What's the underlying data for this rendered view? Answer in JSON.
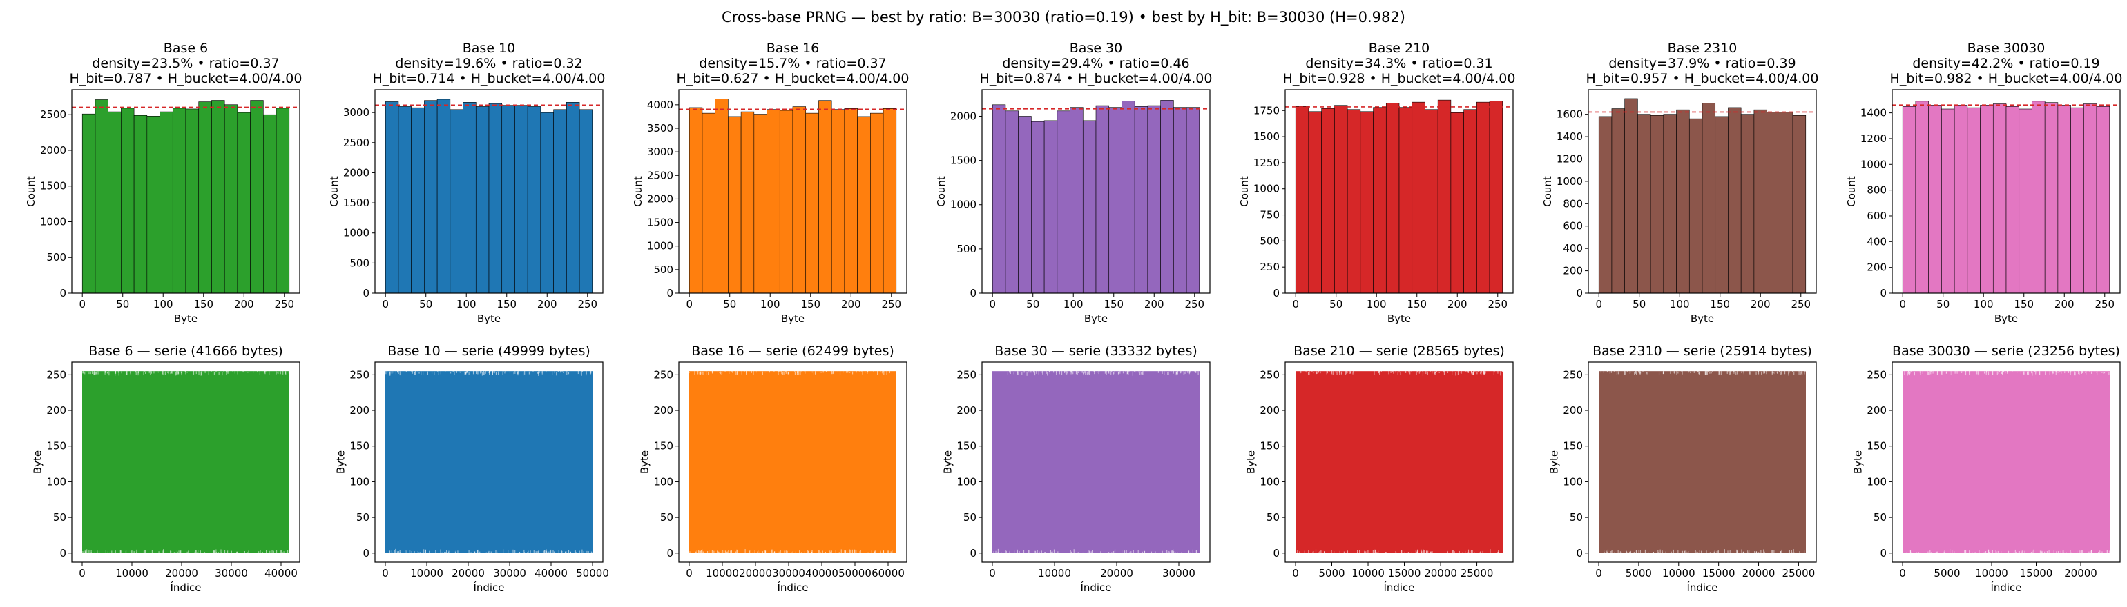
{
  "figure": {
    "suptitle": "Cross-base PRNG — best by ratio: B=30030 (ratio=0.19) • best by H_bit: B=30030 (H=0.982)"
  },
  "chart_data": [
    {
      "type": "bar",
      "title": "Base 6\ndensity=23.5% • ratio=0.37\nH_bit=0.787 • H_bucket=4.00/4.00",
      "xlabel": "Byte",
      "ylabel": "Count",
      "color": "#2ca02c",
      "bin_edges": [
        0,
        16,
        32,
        48,
        64,
        80,
        96,
        112,
        128,
        144,
        160,
        176,
        192,
        208,
        224,
        240,
        256
      ],
      "values": [
        2510,
        2710,
        2540,
        2590,
        2490,
        2480,
        2540,
        2590,
        2580,
        2680,
        2700,
        2640,
        2530,
        2700,
        2500,
        2590
      ],
      "mean_line": 2604,
      "xlim": [
        -13,
        269
      ],
      "ylim": [
        0,
        2850
      ],
      "xticks": [
        0,
        50,
        100,
        150,
        200,
        250
      ],
      "yticks": [
        0,
        500,
        1000,
        1500,
        2000,
        2500
      ]
    },
    {
      "type": "bar",
      "title": "Base 10\ndensity=19.6% • ratio=0.32\nH_bit=0.714 • H_bucket=4.00/4.00",
      "xlabel": "Byte",
      "ylabel": "Count",
      "color": "#1f77b4",
      "bin_edges": [
        0,
        16,
        32,
        48,
        64,
        80,
        96,
        112,
        128,
        144,
        160,
        176,
        192,
        208,
        224,
        240,
        256
      ],
      "values": [
        3180,
        3100,
        3080,
        3200,
        3220,
        3050,
        3170,
        3100,
        3150,
        3120,
        3120,
        3100,
        3000,
        3050,
        3170,
        3050
      ],
      "mean_line": 3125,
      "xlim": [
        -13,
        269
      ],
      "ylim": [
        0,
        3380
      ],
      "xticks": [
        0,
        50,
        100,
        150,
        200,
        250
      ],
      "yticks": [
        0,
        500,
        1000,
        1500,
        2000,
        2500,
        3000
      ]
    },
    {
      "type": "bar",
      "title": "Base 16\ndensity=15.7% • ratio=0.37\nH_bit=0.627 • H_bucket=4.00/4.00",
      "xlabel": "Byte",
      "ylabel": "Count",
      "color": "#ff7f0e",
      "bin_edges": [
        0,
        16,
        32,
        48,
        64,
        80,
        96,
        112,
        128,
        144,
        160,
        176,
        192,
        208,
        224,
        240,
        256
      ],
      "values": [
        3940,
        3820,
        4120,
        3750,
        3850,
        3800,
        3900,
        3880,
        3960,
        3820,
        4090,
        3900,
        3920,
        3750,
        3820,
        3920
      ],
      "mean_line": 3906,
      "xlim": [
        -13,
        269
      ],
      "ylim": [
        0,
        4320
      ],
      "xticks": [
        0,
        50,
        100,
        150,
        200,
        250
      ],
      "yticks": [
        0,
        500,
        1000,
        1500,
        2000,
        2500,
        3000,
        3500,
        4000
      ]
    },
    {
      "type": "bar",
      "title": "Base 30\ndensity=29.4% • ratio=0.46\nH_bit=0.874 • H_bucket=4.00/4.00",
      "xlabel": "Byte",
      "ylabel": "Count",
      "color": "#9467bd",
      "bin_edges": [
        0,
        16,
        32,
        48,
        64,
        80,
        96,
        112,
        128,
        144,
        160,
        176,
        192,
        208,
        224,
        240,
        256
      ],
      "values": [
        2130,
        2060,
        2000,
        1940,
        1950,
        2060,
        2100,
        1950,
        2120,
        2100,
        2170,
        2110,
        2120,
        2180,
        2100,
        2100
      ],
      "mean_line": 2083,
      "xlim": [
        -13,
        269
      ],
      "ylim": [
        0,
        2300
      ],
      "xticks": [
        0,
        50,
        100,
        150,
        200,
        250
      ],
      "yticks": [
        0,
        500,
        1000,
        1500,
        2000
      ]
    },
    {
      "type": "bar",
      "title": "Base 210\ndensity=34.3% • ratio=0.31\nH_bit=0.928 • H_bucket=4.00/4.00",
      "xlabel": "Byte",
      "ylabel": "Count",
      "color": "#d62728",
      "bin_edges": [
        0,
        16,
        32,
        48,
        64,
        80,
        96,
        112,
        128,
        144,
        160,
        176,
        192,
        208,
        224,
        240,
        256
      ],
      "values": [
        1790,
        1740,
        1770,
        1800,
        1760,
        1740,
        1780,
        1820,
        1780,
        1830,
        1760,
        1850,
        1730,
        1760,
        1830,
        1840
      ],
      "mean_line": 1785,
      "xlim": [
        -13,
        269
      ],
      "ylim": [
        0,
        1950
      ],
      "xticks": [
        0,
        50,
        100,
        150,
        200,
        250
      ],
      "yticks": [
        0,
        250,
        500,
        750,
        1000,
        1250,
        1500,
        1750
      ]
    },
    {
      "type": "bar",
      "title": "Base 2310\ndensity=37.9% • ratio=0.39\nH_bit=0.957 • H_bucket=4.00/4.00",
      "xlabel": "Byte",
      "ylabel": "Count",
      "color": "#8c564b",
      "bin_edges": [
        0,
        16,
        32,
        48,
        64,
        80,
        96,
        112,
        128,
        144,
        160,
        176,
        192,
        208,
        224,
        240,
        256
      ],
      "values": [
        1580,
        1650,
        1740,
        1600,
        1590,
        1600,
        1640,
        1560,
        1700,
        1580,
        1660,
        1600,
        1640,
        1620,
        1620,
        1590
      ],
      "mean_line": 1620,
      "xlim": [
        -13,
        269
      ],
      "ylim": [
        0,
        1820
      ],
      "xticks": [
        0,
        50,
        100,
        150,
        200,
        250
      ],
      "yticks": [
        0,
        200,
        400,
        600,
        800,
        1000,
        1200,
        1400,
        1600
      ]
    },
    {
      "type": "bar",
      "title": "Base 30030\ndensity=42.2% • ratio=0.19\nH_bit=0.982 • H_bucket=4.00/4.00",
      "xlabel": "Byte",
      "ylabel": "Count",
      "color": "#e377c2",
      "bin_edges": [
        0,
        16,
        32,
        48,
        64,
        80,
        96,
        112,
        128,
        144,
        160,
        176,
        192,
        208,
        224,
        240,
        256
      ],
      "values": [
        1450,
        1490,
        1460,
        1430,
        1460,
        1440,
        1460,
        1470,
        1450,
        1430,
        1490,
        1480,
        1460,
        1440,
        1470,
        1450
      ],
      "mean_line": 1461,
      "xlim": [
        -13,
        269
      ],
      "ylim": [
        0,
        1580
      ],
      "xticks": [
        0,
        50,
        100,
        150,
        200,
        250
      ],
      "yticks": [
        0,
        200,
        400,
        600,
        800,
        1000,
        1200,
        1400
      ]
    },
    {
      "type": "line",
      "title": "Base 6 — serie (41666 bytes)",
      "xlabel": "Índice",
      "ylabel": "Byte",
      "color": "#2ca02c",
      "n": 41666,
      "y_range": [
        0,
        255
      ],
      "xlim": [
        -2083,
        43749
      ],
      "ylim": [
        -12.75,
        267.75
      ],
      "xticks": [
        0,
        10000,
        20000,
        30000,
        40000
      ],
      "yticks": [
        0,
        50,
        100,
        150,
        200,
        250
      ]
    },
    {
      "type": "line",
      "title": "Base 10 — serie (49999 bytes)",
      "xlabel": "Índice",
      "ylabel": "Byte",
      "color": "#1f77b4",
      "n": 49999,
      "y_range": [
        0,
        255
      ],
      "xlim": [
        -2500,
        52499
      ],
      "ylim": [
        -12.75,
        267.75
      ],
      "xticks": [
        0,
        10000,
        20000,
        30000,
        40000,
        50000
      ],
      "yticks": [
        0,
        50,
        100,
        150,
        200,
        250
      ]
    },
    {
      "type": "line",
      "title": "Base 16 — serie (62499 bytes)",
      "xlabel": "Índice",
      "ylabel": "Byte",
      "color": "#ff7f0e",
      "n": 62499,
      "y_range": [
        0,
        255
      ],
      "xlim": [
        -3125,
        65624
      ],
      "ylim": [
        -12.75,
        267.75
      ],
      "xticks": [
        0,
        10000,
        20000,
        30000,
        40000,
        50000,
        60000
      ],
      "yticks": [
        0,
        50,
        100,
        150,
        200,
        250
      ]
    },
    {
      "type": "line",
      "title": "Base 30 — serie (33332 bytes)",
      "xlabel": "Índice",
      "ylabel": "Byte",
      "color": "#9467bd",
      "n": 33332,
      "y_range": [
        0,
        255
      ],
      "xlim": [
        -1667,
        34999
      ],
      "ylim": [
        -12.75,
        267.75
      ],
      "xticks": [
        0,
        10000,
        20000,
        30000
      ],
      "yticks": [
        0,
        50,
        100,
        150,
        200,
        250
      ]
    },
    {
      "type": "line",
      "title": "Base 210 — serie (28565 bytes)",
      "xlabel": "Índice",
      "ylabel": "Byte",
      "color": "#d62728",
      "n": 28565,
      "y_range": [
        0,
        255
      ],
      "xlim": [
        -1428,
        29993
      ],
      "ylim": [
        -12.75,
        267.75
      ],
      "xticks": [
        0,
        5000,
        10000,
        15000,
        20000,
        25000
      ],
      "yticks": [
        0,
        50,
        100,
        150,
        200,
        250
      ]
    },
    {
      "type": "line",
      "title": "Base 2310 — serie (25914 bytes)",
      "xlabel": "Índice",
      "ylabel": "Byte",
      "color": "#8c564b",
      "n": 25914,
      "y_range": [
        0,
        255
      ],
      "xlim": [
        -1296,
        27210
      ],
      "ylim": [
        -12.75,
        267.75
      ],
      "xticks": [
        0,
        5000,
        10000,
        15000,
        20000,
        25000
      ],
      "yticks": [
        0,
        50,
        100,
        150,
        200,
        250
      ]
    },
    {
      "type": "line",
      "title": "Base 30030 — serie (23256 bytes)",
      "xlabel": "Índice",
      "ylabel": "Byte",
      "color": "#e377c2",
      "n": 23256,
      "y_range": [
        0,
        255
      ],
      "xlim": [
        -1163,
        24419
      ],
      "ylim": [
        -12.75,
        267.75
      ],
      "xticks": [
        0,
        5000,
        10000,
        15000,
        20000
      ],
      "yticks": [
        0,
        50,
        100,
        150,
        200,
        250
      ]
    }
  ]
}
